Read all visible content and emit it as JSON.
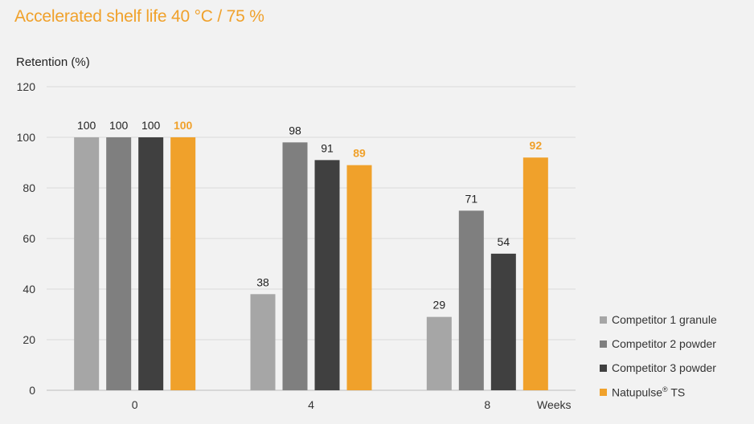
{
  "chart_data": {
    "type": "bar",
    "title": "Accelerated shelf life 40 °C / 75 %",
    "ylabel": "Retention (%)",
    "xlabel": "Weeks",
    "ylim": [
      0,
      120
    ],
    "yticks": [
      0,
      20,
      40,
      60,
      80,
      100,
      120
    ],
    "grid": true,
    "legend_position": "bottom-right",
    "categories": [
      "0",
      "4",
      "8"
    ],
    "series": [
      {
        "name": "Competitor 1 granule",
        "color": "#a6a6a6",
        "values": [
          100,
          38,
          29
        ],
        "labels": [
          "100",
          "38",
          "29"
        ],
        "label_color": "#222222"
      },
      {
        "name": "Competitor 2 powder",
        "color": "#7f7f7f",
        "values": [
          100,
          98,
          71
        ],
        "labels": [
          "100",
          "98",
          "71"
        ],
        "label_color": "#222222"
      },
      {
        "name": "Competitor 3 powder",
        "color": "#404040",
        "values": [
          100,
          91,
          54
        ],
        "labels": [
          "100",
          "91",
          "54"
        ],
        "label_color": "#222222"
      },
      {
        "name": "Natupulse",
        "name_sup": "®",
        "name_suffix": " TS",
        "color": "#f0a12b",
        "values": [
          100,
          89,
          92
        ],
        "labels": [
          "100",
          "89",
          "92"
        ],
        "label_color": "#f0a12b"
      }
    ]
  }
}
